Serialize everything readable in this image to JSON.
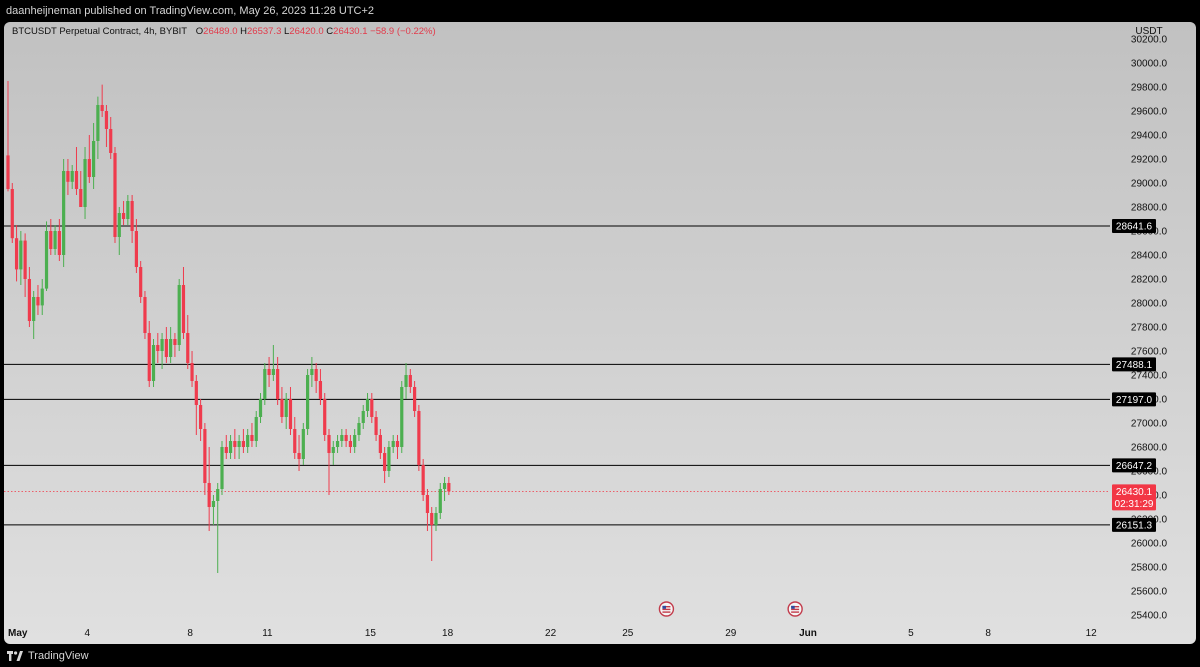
{
  "header": {
    "published_text": "daanheijneman published on TradingView.com, May 26, 2023 11:28 UTC+2"
  },
  "footer": {
    "brand": "TradingView"
  },
  "legend": {
    "symbol": "BTCUSDT Perpetual Contract, 4h, BYBIT",
    "o_label": "O",
    "o_value": "26489.0",
    "h_label": "H",
    "h_value": "26537.3",
    "l_label": "L",
    "l_value": "26420.0",
    "c_label": "C",
    "c_value": "26430.1",
    "change": "−58.9 (−0.22%)"
  },
  "colors": {
    "up": "#4caf50",
    "down": "#ef3b4d",
    "level_line": "#000000",
    "price_tag": "#f23645",
    "level_tag": "#000000"
  },
  "icons": [
    "us-flag-event-icon",
    "us-flag-event-icon"
  ],
  "chart_data": {
    "type": "candlestick",
    "symbol": "BTCUSDT Perpetual Contract",
    "exchange": "BYBIT",
    "timeframe": "4h",
    "currency": "USDT",
    "ylim": [
      25400,
      30200
    ],
    "y_ticks": [
      "25400.0",
      "25600.0",
      "25800.0",
      "26000.0",
      "26200.0",
      "26400.0",
      "26600.0",
      "26800.0",
      "27000.0",
      "27200.0",
      "27400.0",
      "27600.0",
      "27800.0",
      "28000.0",
      "28200.0",
      "28400.0",
      "28600.0",
      "28800.0",
      "29000.0",
      "29200.0",
      "29400.0",
      "29600.0",
      "29800.0",
      "30000.0",
      "30200.0"
    ],
    "x_ticks": [
      {
        "label": "May",
        "day": 1
      },
      {
        "label": "4",
        "day": 4
      },
      {
        "label": "8",
        "day": 8
      },
      {
        "label": "11",
        "day": 11
      },
      {
        "label": "15",
        "day": 15
      },
      {
        "label": "18",
        "day": 18
      },
      {
        "label": "22",
        "day": 22
      },
      {
        "label": "25",
        "day": 25
      },
      {
        "label": "29",
        "day": 29
      },
      {
        "label": "Jun",
        "day": 32
      },
      {
        "label": "5",
        "day": 36
      },
      {
        "label": "8",
        "day": 39
      },
      {
        "label": "12",
        "day": 43
      }
    ],
    "x_start_day": 1,
    "x_end_day": 45.3,
    "horizontal_levels": [
      {
        "value": 28641.6,
        "label": "28641.6"
      },
      {
        "value": 27488.1,
        "label": "27488.1"
      },
      {
        "value": 27197.0,
        "label": "27197.0"
      },
      {
        "value": 26647.2,
        "label": "26647.2"
      },
      {
        "value": 26151.3,
        "label": "26151.3"
      }
    ],
    "last_price": {
      "value": 26430.1,
      "label": "26430.1",
      "countdown": "02:31:29"
    },
    "event_markers": [
      26.5,
      31.5
    ],
    "candles_ohlc": [
      [
        29230,
        29850,
        28930,
        28950
      ],
      [
        28950,
        29000,
        28500,
        28540
      ],
      [
        28540,
        28650,
        28180,
        28280
      ],
      [
        28280,
        28600,
        28150,
        28520
      ],
      [
        28520,
        28580,
        28050,
        28200
      ],
      [
        28200,
        28300,
        27800,
        27850
      ],
      [
        27850,
        28100,
        27700,
        28050
      ],
      [
        28050,
        28150,
        27900,
        27980
      ],
      [
        27980,
        28200,
        27900,
        28120
      ],
      [
        28120,
        28680,
        28100,
        28600
      ],
      [
        28600,
        28700,
        28400,
        28450
      ],
      [
        28450,
        28650,
        28400,
        28600
      ],
      [
        28600,
        28700,
        28350,
        28400
      ],
      [
        28400,
        29200,
        28300,
        29100
      ],
      [
        29100,
        29200,
        28900,
        29010
      ],
      [
        29010,
        29150,
        28950,
        29100
      ],
      [
        29100,
        29300,
        28900,
        28950
      ],
      [
        28950,
        29100,
        28800,
        28800
      ],
      [
        28800,
        29300,
        28700,
        29200
      ],
      [
        29200,
        29400,
        29000,
        29050
      ],
      [
        29050,
        29500,
        28950,
        29350
      ],
      [
        29350,
        29720,
        29200,
        29650
      ],
      [
        29650,
        29820,
        29550,
        29600
      ],
      [
        29600,
        29650,
        29300,
        29450
      ],
      [
        29450,
        29550,
        29200,
        29250
      ],
      [
        29250,
        29300,
        28500,
        28550
      ],
      [
        28550,
        28800,
        28400,
        28750
      ],
      [
        28750,
        28850,
        28650,
        28700
      ],
      [
        28700,
        28900,
        28650,
        28850
      ],
      [
        28850,
        28900,
        28500,
        28600
      ],
      [
        28600,
        28700,
        28250,
        28300
      ],
      [
        28300,
        28350,
        28000,
        28050
      ],
      [
        28050,
        28100,
        27700,
        27750
      ],
      [
        27750,
        27850,
        27300,
        27350
      ],
      [
        27350,
        27700,
        27300,
        27650
      ],
      [
        27650,
        27750,
        27500,
        27600
      ],
      [
        27600,
        27750,
        27450,
        27700
      ],
      [
        27700,
        27800,
        27500,
        27550
      ],
      [
        27550,
        27800,
        27500,
        27700
      ],
      [
        27700,
        27750,
        27550,
        27650
      ],
      [
        27650,
        28200,
        27600,
        28150
      ],
      [
        28150,
        28300,
        27700,
        27750
      ],
      [
        27750,
        27900,
        27450,
        27500
      ],
      [
        27500,
        27600,
        27300,
        27350
      ],
      [
        27350,
        27400,
        26900,
        27150
      ],
      [
        27150,
        27200,
        26850,
        26950
      ],
      [
        26950,
        27000,
        26400,
        26500
      ],
      [
        26500,
        26800,
        26100,
        26300
      ],
      [
        26300,
        26400,
        26150,
        26350
      ],
      [
        26350,
        26500,
        25750,
        26450
      ],
      [
        26450,
        26850,
        26400,
        26800
      ],
      [
        26800,
        26900,
        26700,
        26750
      ],
      [
        26750,
        26900,
        26700,
        26850
      ],
      [
        26850,
        26950,
        26700,
        26800
      ],
      [
        26800,
        26900,
        26700,
        26850
      ],
      [
        26850,
        26950,
        26750,
        26800
      ],
      [
        26800,
        26950,
        26750,
        26900
      ],
      [
        26900,
        27000,
        26800,
        26850
      ],
      [
        26850,
        27100,
        26800,
        27050
      ],
      [
        27050,
        27250,
        27000,
        27200
      ],
      [
        27200,
        27500,
        27150,
        27450
      ],
      [
        27450,
        27550,
        27300,
        27400
      ],
      [
        27400,
        27650,
        27350,
        27450
      ],
      [
        27450,
        27550,
        27150,
        27200
      ],
      [
        27200,
        27300,
        27000,
        27050
      ],
      [
        27050,
        27250,
        26950,
        27200
      ],
      [
        27200,
        27300,
        26900,
        26950
      ],
      [
        26950,
        27050,
        26700,
        26750
      ],
      [
        26750,
        26900,
        26600,
        26700
      ],
      [
        26700,
        27000,
        26650,
        26950
      ],
      [
        26950,
        27450,
        26900,
        27400
      ],
      [
        27400,
        27550,
        27300,
        27450
      ],
      [
        27450,
        27500,
        27250,
        27350
      ],
      [
        27350,
        27450,
        27150,
        27200
      ],
      [
        27200,
        27250,
        26850,
        26900
      ],
      [
        26900,
        26950,
        26400,
        26750
      ],
      [
        26750,
        26850,
        26650,
        26800
      ],
      [
        26800,
        26900,
        26750,
        26850
      ],
      [
        26850,
        26950,
        26800,
        26900
      ],
      [
        26900,
        26950,
        26800,
        26850
      ],
      [
        26850,
        26900,
        26750,
        26800
      ],
      [
        26800,
        26950,
        26750,
        26900
      ],
      [
        26900,
        27050,
        26850,
        27000
      ],
      [
        27000,
        27150,
        26950,
        27100
      ],
      [
        27100,
        27250,
        27050,
        27200
      ],
      [
        27200,
        27250,
        27000,
        27050
      ],
      [
        27050,
        27100,
        26850,
        26900
      ],
      [
        26900,
        26950,
        26700,
        26750
      ],
      [
        26750,
        26800,
        26500,
        26600
      ],
      [
        26600,
        26850,
        26550,
        26800
      ],
      [
        26800,
        26900,
        26750,
        26850
      ],
      [
        26850,
        26900,
        26700,
        26800
      ],
      [
        26800,
        27350,
        26750,
        27300
      ],
      [
        27300,
        27500,
        27200,
        27400
      ],
      [
        27400,
        27450,
        27250,
        27300
      ],
      [
        27300,
        27350,
        27050,
        27100
      ],
      [
        27100,
        27150,
        26600,
        26650
      ],
      [
        26650,
        26700,
        26350,
        26400
      ],
      [
        26400,
        26450,
        26100,
        26250
      ],
      [
        26250,
        26300,
        25850,
        26150
      ],
      [
        26150,
        26300,
        26100,
        26250
      ],
      [
        26250,
        26500,
        26200,
        26450
      ],
      [
        26450,
        26550,
        26350,
        26500
      ],
      [
        26500,
        26550,
        26400,
        26430
      ]
    ]
  }
}
